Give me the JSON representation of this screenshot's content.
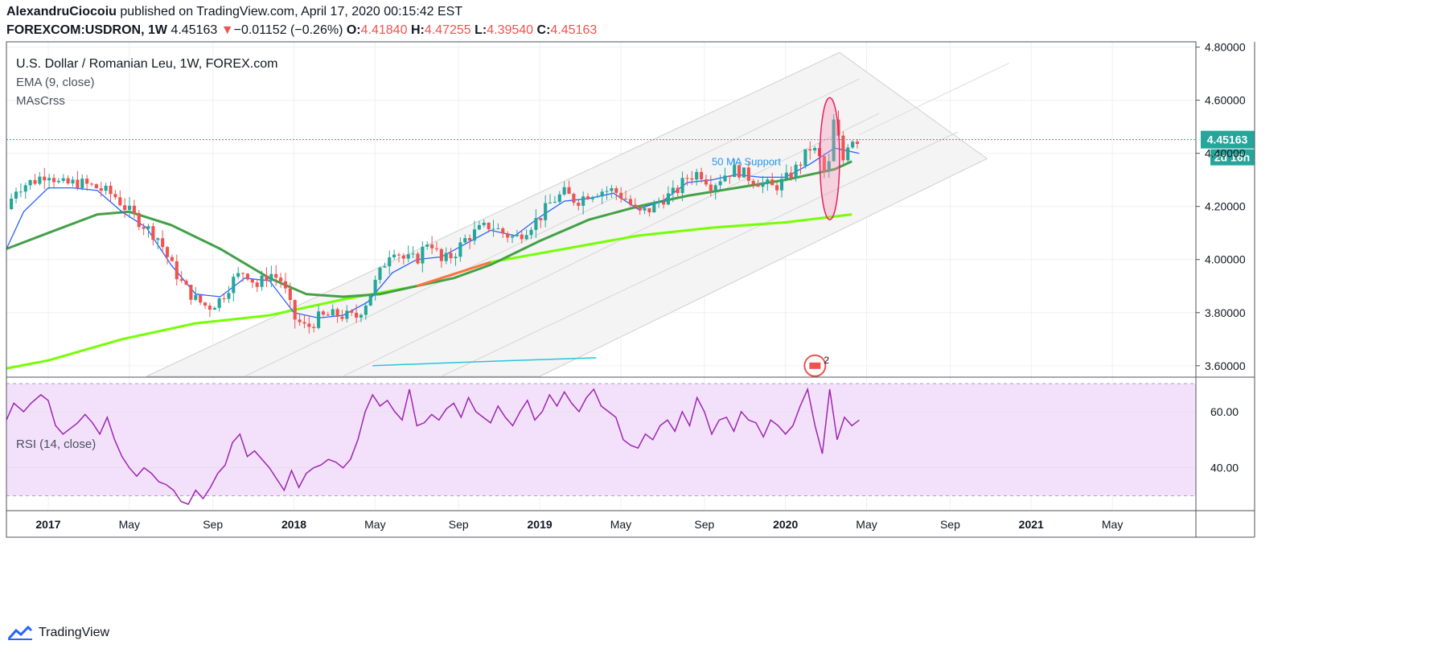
{
  "header": {
    "author": "AlexandruCiocoiu",
    "published": " published on TradingView.com, April 17, 2020 00:15:42 EST",
    "symbol": "FOREXCOM:USDRON, 1W",
    "last": "4.45163",
    "arrow": "▼",
    "change": "−0.01152 (−0.26%)",
    "o_label": "O:",
    "o_value": "4.41840",
    "h_label": "H:",
    "h_value": "4.47255",
    "l_label": "L:",
    "l_value": "4.39540",
    "c_label": "C:",
    "c_value": "4.45163"
  },
  "legend": {
    "title": "U.S. Dollar / Romanian Leu, 1W, FOREX.com",
    "ema": "EMA (9, close)",
    "ma": "MAsCrss",
    "rsi": "RSI (14, close)"
  },
  "price_tag": {
    "value": "4.45163",
    "countdown": "2d 16h"
  },
  "annotation": "50 MA Support",
  "event_badge": "2",
  "footer": {
    "brand": "TradingView"
  },
  "colors": {
    "up": "#26a69a",
    "down": "#ef5350",
    "ema": "#2962ff",
    "ma50": "#43a047",
    "ma200": "#76ff03",
    "rsi": "#9c27b0",
    "rsi_band": "#f3e1fb",
    "channel": "#ececec"
  },
  "chart_data": {
    "type": "candlestick",
    "title": "U.S. Dollar / Romanian Leu, 1W, FOREX.com",
    "price_axis": {
      "ylim": [
        3.56,
        4.82
      ],
      "ticks": [
        3.6,
        3.8,
        4.0,
        4.2,
        4.4,
        4.6,
        4.8
      ],
      "tick_labels": [
        "3.60000",
        "3.80000",
        "4.00000",
        "4.20000",
        "4.40000",
        "4.60000",
        "4.80000"
      ]
    },
    "time_axis": {
      "start": 2016.83,
      "end": 2021.67,
      "ticks": [
        2017.0,
        2017.33,
        2017.67,
        2018.0,
        2018.33,
        2018.67,
        2019.0,
        2019.33,
        2019.67,
        2020.0,
        2020.33,
        2020.67,
        2021.0,
        2021.33
      ],
      "tick_labels": [
        "2017",
        "May",
        "Sep",
        "2018",
        "May",
        "Sep",
        "2019",
        "May",
        "Sep",
        "2020",
        "May",
        "Sep",
        "2021",
        "May"
      ]
    },
    "close_path": [
      [
        2016.83,
        4.19
      ],
      [
        2016.87,
        4.27
      ],
      [
        2016.95,
        4.3
      ],
      [
        2017.0,
        4.33
      ],
      [
        2017.05,
        4.28
      ],
      [
        2017.12,
        4.29
      ],
      [
        2017.2,
        4.27
      ],
      [
        2017.27,
        4.24
      ],
      [
        2017.33,
        4.18
      ],
      [
        2017.4,
        4.12
      ],
      [
        2017.45,
        4.08
      ],
      [
        2017.5,
        3.98
      ],
      [
        2017.55,
        3.9
      ],
      [
        2017.6,
        3.85
      ],
      [
        2017.65,
        3.82
      ],
      [
        2017.7,
        3.85
      ],
      [
        2017.75,
        3.92
      ],
      [
        2017.8,
        3.96
      ],
      [
        2017.85,
        3.9
      ],
      [
        2017.9,
        3.95
      ],
      [
        2017.95,
        3.92
      ],
      [
        2018.0,
        3.78
      ],
      [
        2018.05,
        3.74
      ],
      [
        2018.1,
        3.78
      ],
      [
        2018.15,
        3.79
      ],
      [
        2018.2,
        3.79
      ],
      [
        2018.25,
        3.78
      ],
      [
        2018.3,
        3.85
      ],
      [
        2018.35,
        3.95
      ],
      [
        2018.4,
        4.05
      ],
      [
        2018.45,
        4.0
      ],
      [
        2018.5,
        4.0
      ],
      [
        2018.55,
        4.08
      ],
      [
        2018.6,
        3.99
      ],
      [
        2018.65,
        4.02
      ],
      [
        2018.7,
        4.08
      ],
      [
        2018.75,
        4.11
      ],
      [
        2018.8,
        4.13
      ],
      [
        2018.85,
        4.1
      ],
      [
        2018.9,
        4.08
      ],
      [
        2018.95,
        4.12
      ],
      [
        2019.0,
        4.16
      ],
      [
        2019.05,
        4.22
      ],
      [
        2019.1,
        4.25
      ],
      [
        2019.15,
        4.22
      ],
      [
        2019.2,
        4.25
      ],
      [
        2019.25,
        4.26
      ],
      [
        2019.3,
        4.26
      ],
      [
        2019.35,
        4.23
      ],
      [
        2019.4,
        4.17
      ],
      [
        2019.45,
        4.19
      ],
      [
        2019.5,
        4.23
      ],
      [
        2019.55,
        4.25
      ],
      [
        2019.6,
        4.31
      ],
      [
        2019.65,
        4.33
      ],
      [
        2019.7,
        4.28
      ],
      [
        2019.75,
        4.32
      ],
      [
        2019.8,
        4.34
      ],
      [
        2019.85,
        4.31
      ],
      [
        2019.9,
        4.29
      ],
      [
        2019.95,
        4.27
      ],
      [
        2020.0,
        4.3
      ],
      [
        2020.05,
        4.35
      ],
      [
        2020.1,
        4.42
      ],
      [
        2020.13,
        4.4
      ],
      [
        2020.17,
        4.3
      ],
      [
        2020.2,
        4.55
      ],
      [
        2020.23,
        4.36
      ],
      [
        2020.26,
        4.46
      ],
      [
        2020.3,
        4.45
      ]
    ],
    "ema9": [
      [
        2016.83,
        4.04
      ],
      [
        2016.9,
        4.18
      ],
      [
        2017.0,
        4.27
      ],
      [
        2017.1,
        4.27
      ],
      [
        2017.2,
        4.26
      ],
      [
        2017.3,
        4.18
      ],
      [
        2017.4,
        4.12
      ],
      [
        2017.5,
        3.98
      ],
      [
        2017.6,
        3.87
      ],
      [
        2017.7,
        3.86
      ],
      [
        2017.8,
        3.93
      ],
      [
        2017.9,
        3.92
      ],
      [
        2018.0,
        3.8
      ],
      [
        2018.1,
        3.78
      ],
      [
        2018.2,
        3.79
      ],
      [
        2018.3,
        3.84
      ],
      [
        2018.4,
        3.95
      ],
      [
        2018.5,
        4.0
      ],
      [
        2018.6,
        4.01
      ],
      [
        2018.7,
        4.06
      ],
      [
        2018.8,
        4.11
      ],
      [
        2018.9,
        4.09
      ],
      [
        2019.0,
        4.16
      ],
      [
        2019.1,
        4.22
      ],
      [
        2019.2,
        4.23
      ],
      [
        2019.3,
        4.25
      ],
      [
        2019.4,
        4.19
      ],
      [
        2019.5,
        4.22
      ],
      [
        2019.6,
        4.29
      ],
      [
        2019.7,
        4.3
      ],
      [
        2019.8,
        4.32
      ],
      [
        2019.9,
        4.31
      ],
      [
        2020.0,
        4.31
      ],
      [
        2020.1,
        4.36
      ],
      [
        2020.2,
        4.42
      ],
      [
        2020.3,
        4.4
      ]
    ],
    "ma50": [
      [
        2016.83,
        4.04
      ],
      [
        2017.0,
        4.1
      ],
      [
        2017.2,
        4.17
      ],
      [
        2017.33,
        4.18
      ],
      [
        2017.5,
        4.13
      ],
      [
        2017.7,
        4.04
      ],
      [
        2017.9,
        3.93
      ],
      [
        2018.05,
        3.87
      ],
      [
        2018.2,
        3.86
      ],
      [
        2018.35,
        3.87
      ],
      [
        2018.5,
        3.9
      ],
      [
        2018.65,
        3.93
      ],
      [
        2018.8,
        3.98
      ],
      [
        2019.0,
        4.07
      ],
      [
        2019.2,
        4.15
      ],
      [
        2019.4,
        4.2
      ],
      [
        2019.6,
        4.24
      ],
      [
        2019.8,
        4.27
      ],
      [
        2020.0,
        4.3
      ],
      [
        2020.2,
        4.34
      ],
      [
        2020.27,
        4.37
      ]
    ],
    "ma200": [
      [
        2016.83,
        3.59
      ],
      [
        2017.0,
        3.62
      ],
      [
        2017.3,
        3.7
      ],
      [
        2017.6,
        3.76
      ],
      [
        2017.9,
        3.79
      ],
      [
        2018.2,
        3.85
      ],
      [
        2018.5,
        3.9
      ],
      [
        2018.8,
        3.99
      ],
      [
        2019.1,
        4.04
      ],
      [
        2019.4,
        4.09
      ],
      [
        2019.7,
        4.12
      ],
      [
        2020.0,
        4.14
      ],
      [
        2020.27,
        4.17
      ]
    ],
    "ma_extra": [
      [
        2018.32,
        3.6
      ],
      [
        2018.6,
        3.61
      ],
      [
        2018.9,
        3.62
      ],
      [
        2019.23,
        3.63
      ]
    ],
    "channel": {
      "lines": [
        [
          [
            2017.4,
            3.56
          ],
          [
            2020.22,
            4.78
          ]
        ],
        [
          [
            2017.8,
            3.56
          ],
          [
            2020.3,
            4.68
          ]
        ],
        [
          [
            2018.2,
            3.56
          ],
          [
            2020.38,
            4.55
          ]
        ],
        [
          [
            2018.6,
            3.56
          ],
          [
            2020.7,
            4.48
          ]
        ],
        [
          [
            2019.0,
            3.56
          ],
          [
            2020.82,
            4.38
          ]
        ]
      ],
      "upper": [
        [
          2017.4,
          3.56
        ],
        [
          2020.22,
          4.78
        ]
      ],
      "lower": [
        [
          2019.0,
          3.56
        ],
        [
          2020.82,
          4.38
        ]
      ]
    },
    "annotation_point": [
      2019.7,
      4.37
    ],
    "highlight_ellipse": {
      "center": [
        2020.18,
        4.38
      ],
      "x_radius": 0.04,
      "y_radius": 0.23
    },
    "current_price": 4.45163,
    "rsi": {
      "title": "RSI (14, close)",
      "ylim": [
        25,
        72
      ],
      "ticks": [
        40,
        60
      ],
      "tick_labels": [
        "40.00",
        "60.00"
      ],
      "band": [
        30,
        70
      ],
      "values": [
        [
          2016.83,
          57
        ],
        [
          2016.86,
          63
        ],
        [
          2016.9,
          60
        ],
        [
          2016.93,
          63
        ],
        [
          2016.97,
          66
        ],
        [
          2017.0,
          64
        ],
        [
          2017.03,
          55
        ],
        [
          2017.06,
          52
        ],
        [
          2017.09,
          54
        ],
        [
          2017.12,
          56
        ],
        [
          2017.15,
          59
        ],
        [
          2017.18,
          56
        ],
        [
          2017.21,
          52
        ],
        [
          2017.24,
          58
        ],
        [
          2017.27,
          50
        ],
        [
          2017.3,
          44
        ],
        [
          2017.33,
          40
        ],
        [
          2017.36,
          37
        ],
        [
          2017.39,
          40
        ],
        [
          2017.42,
          38
        ],
        [
          2017.45,
          35
        ],
        [
          2017.48,
          34
        ],
        [
          2017.51,
          32
        ],
        [
          2017.54,
          28
        ],
        [
          2017.57,
          27
        ],
        [
          2017.6,
          32
        ],
        [
          2017.63,
          29
        ],
        [
          2017.66,
          33
        ],
        [
          2017.69,
          38
        ],
        [
          2017.72,
          41
        ],
        [
          2017.75,
          49
        ],
        [
          2017.78,
          52
        ],
        [
          2017.81,
          44
        ],
        [
          2017.84,
          46
        ],
        [
          2017.87,
          43
        ],
        [
          2017.9,
          40
        ],
        [
          2017.93,
          36
        ],
        [
          2017.96,
          32
        ],
        [
          2017.99,
          39
        ],
        [
          2018.02,
          33
        ],
        [
          2018.05,
          38
        ],
        [
          2018.08,
          40
        ],
        [
          2018.11,
          41
        ],
        [
          2018.14,
          43
        ],
        [
          2018.17,
          42
        ],
        [
          2018.2,
          40
        ],
        [
          2018.23,
          43
        ],
        [
          2018.26,
          50
        ],
        [
          2018.29,
          60
        ],
        [
          2018.32,
          66
        ],
        [
          2018.35,
          62
        ],
        [
          2018.38,
          64
        ],
        [
          2018.41,
          60
        ],
        [
          2018.44,
          57
        ],
        [
          2018.47,
          68
        ],
        [
          2018.5,
          55
        ],
        [
          2018.53,
          56
        ],
        [
          2018.56,
          59
        ],
        [
          2018.59,
          57
        ],
        [
          2018.62,
          61
        ],
        [
          2018.65,
          63
        ],
        [
          2018.68,
          58
        ],
        [
          2018.71,
          65
        ],
        [
          2018.74,
          60
        ],
        [
          2018.77,
          58
        ],
        [
          2018.8,
          56
        ],
        [
          2018.83,
          62
        ],
        [
          2018.86,
          58
        ],
        [
          2018.89,
          55
        ],
        [
          2018.92,
          60
        ],
        [
          2018.95,
          64
        ],
        [
          2018.98,
          57
        ],
        [
          2019.01,
          60
        ],
        [
          2019.04,
          66
        ],
        [
          2019.07,
          62
        ],
        [
          2019.1,
          67
        ],
        [
          2019.13,
          63
        ],
        [
          2019.16,
          60
        ],
        [
          2019.19,
          65
        ],
        [
          2019.22,
          68
        ],
        [
          2019.25,
          62
        ],
        [
          2019.28,
          60
        ],
        [
          2019.31,
          58
        ],
        [
          2019.34,
          50
        ],
        [
          2019.37,
          48
        ],
        [
          2019.4,
          47
        ],
        [
          2019.43,
          52
        ],
        [
          2019.46,
          50
        ],
        [
          2019.49,
          55
        ],
        [
          2019.52,
          57
        ],
        [
          2019.55,
          53
        ],
        [
          2019.58,
          60
        ],
        [
          2019.61,
          55
        ],
        [
          2019.64,
          65
        ],
        [
          2019.67,
          60
        ],
        [
          2019.7,
          52
        ],
        [
          2019.73,
          57
        ],
        [
          2019.76,
          58
        ],
        [
          2019.79,
          53
        ],
        [
          2019.82,
          60
        ],
        [
          2019.85,
          57
        ],
        [
          2019.88,
          56
        ],
        [
          2019.91,
          51
        ],
        [
          2019.94,
          57
        ],
        [
          2019.97,
          55
        ],
        [
          2020.0,
          52
        ],
        [
          2020.03,
          55
        ],
        [
          2020.06,
          62
        ],
        [
          2020.09,
          68
        ],
        [
          2020.12,
          55
        ],
        [
          2020.15,
          45
        ],
        [
          2020.18,
          68
        ],
        [
          2020.21,
          50
        ],
        [
          2020.24,
          58
        ],
        [
          2020.27,
          55
        ],
        [
          2020.3,
          57
        ]
      ]
    }
  }
}
